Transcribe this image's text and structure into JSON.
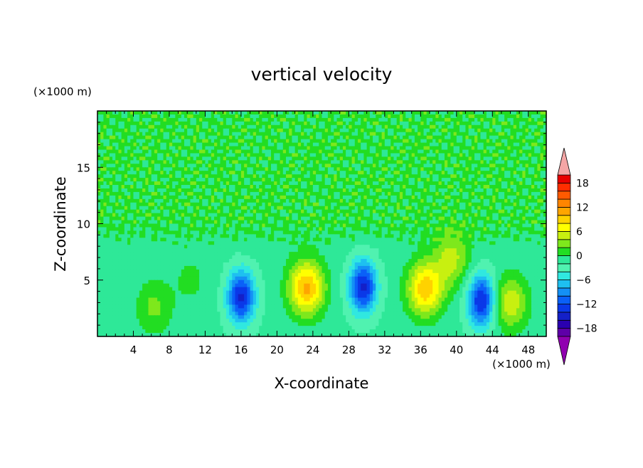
{
  "chart_data": {
    "type": "heatmap",
    "title": "vertical velocity",
    "xlabel": "X-coordinate",
    "ylabel": "Z-coordinate",
    "x_scale_label": "(×1000 m)",
    "y_scale_label": "(×1000 m)",
    "xlim": [
      0,
      50
    ],
    "ylim": [
      0,
      20
    ],
    "x_ticks": [
      4,
      8,
      12,
      16,
      20,
      24,
      28,
      32,
      36,
      40,
      44,
      48
    ],
    "y_ticks": [
      5,
      10,
      15
    ],
    "background_value": -1.5,
    "upper_layer": {
      "z_from": 8.5,
      "value": 0.5
    },
    "features": [
      {
        "sign": "updraft",
        "x": 6.3,
        "z": 2.6,
        "peak": 4
      },
      {
        "sign": "updraft",
        "x": 10.4,
        "z": 5.0,
        "peak": 2
      },
      {
        "sign": "downdraft",
        "x": 16.0,
        "z": 3.5,
        "peak": -13
      },
      {
        "sign": "updraft",
        "x": 23.3,
        "z": 4.3,
        "peak": 12
      },
      {
        "sign": "downdraft",
        "x": 29.6,
        "z": 4.4,
        "peak": -13
      },
      {
        "sign": "updraft",
        "x": 36.5,
        "z": 4.2,
        "peak": 11
      },
      {
        "sign": "updraft",
        "x": 39.5,
        "z": 6.8,
        "peak": 6
      },
      {
        "sign": "downdraft",
        "x": 42.8,
        "z": 3.2,
        "peak": -13
      },
      {
        "sign": "updraft",
        "x": 46.0,
        "z": 3.0,
        "peak": 7
      }
    ],
    "colorbar": {
      "labels": [
        "18",
        "12",
        "6",
        "0",
        "−6",
        "−12",
        "−18"
      ],
      "label_values": [
        18,
        12,
        6,
        0,
        -6,
        -12,
        -18
      ],
      "levels": [
        -20,
        -18,
        -16,
        -14,
        -12,
        -10,
        -8,
        -6,
        -4,
        -2,
        0,
        2,
        4,
        6,
        8,
        10,
        12,
        14,
        16,
        18,
        20
      ],
      "colors": [
        "#5e00a8",
        "#2a00b0",
        "#1420c8",
        "#0a38e8",
        "#0a60f8",
        "#1490f5",
        "#1ec0f0",
        "#30e8e0",
        "#50f2b0",
        "#2ee898",
        "#22dd22",
        "#7ee81c",
        "#c8f010",
        "#ffff00",
        "#ffd200",
        "#ffa500",
        "#ff8500",
        "#ff5a00",
        "#ff2e00",
        "#e80000"
      ],
      "overflow_high": "#f4a6a6",
      "overflow_low": "#9000b0"
    }
  }
}
